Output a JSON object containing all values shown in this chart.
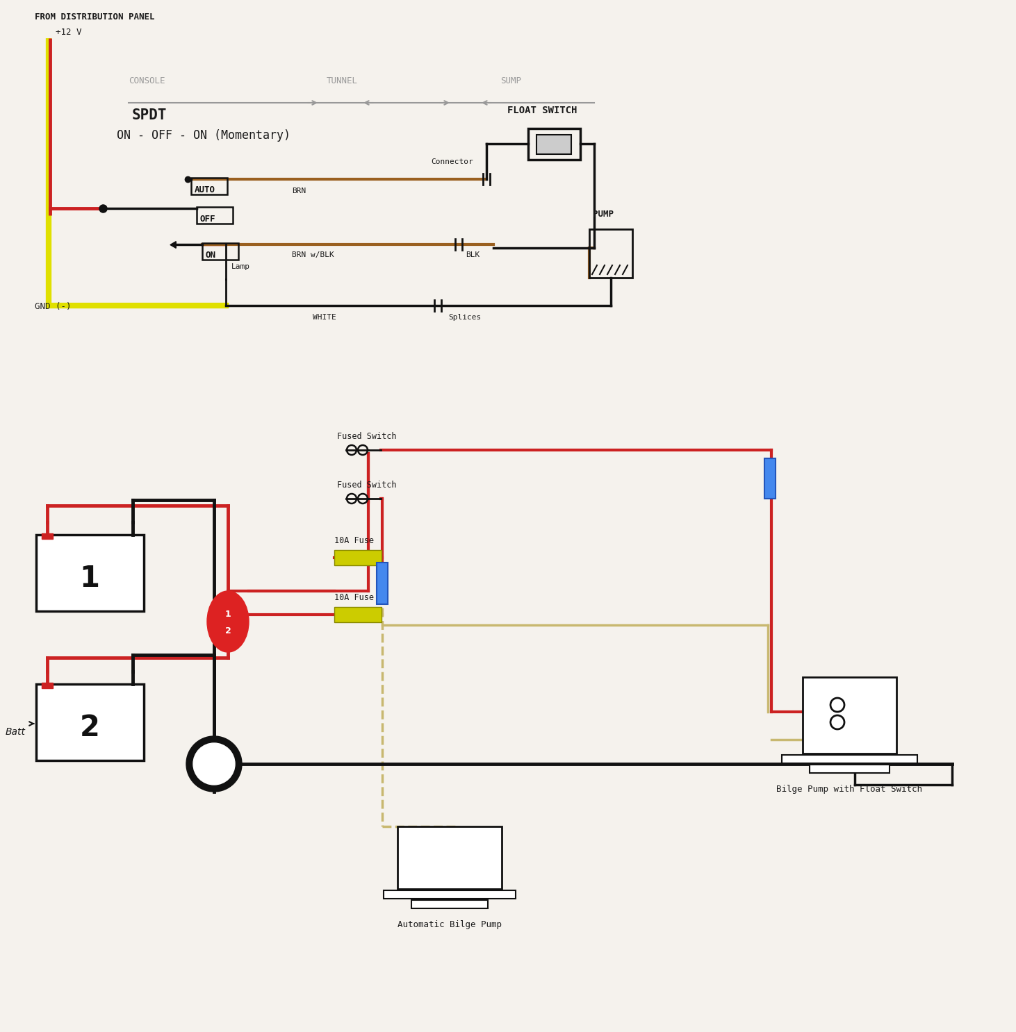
{
  "bg_color": "#f5f2ed",
  "wire_red": "#cc2222",
  "wire_yellow": "#e0e000",
  "wire_brown": "#9a6020",
  "wire_brown_blk": "#7a5030",
  "wire_black": "#111111",
  "wire_gray": "#999999",
  "wire_blue": "#4488ee",
  "wire_tan": "#c8b870",
  "dark": "#1a1a1a",
  "top": {
    "from_panel": "FROM DISTRIBUTION PANEL",
    "v12": "+12 V",
    "console": "CONSOLE",
    "tunnel": "TUNNEL",
    "sump": "SUMP",
    "spdt": "SPDT",
    "on_off_on": "ON - OFF - ON (Momentary)",
    "auto": "AUTO",
    "off": "OFF",
    "on_lbl": "ON",
    "lamp": "Lamp",
    "brn": "BRN",
    "brn_blk": "BRN w/BLK",
    "blk": "BLK",
    "white": "WHITE",
    "splices": "Splices",
    "connector": "Connector",
    "float_switch": "FLOAT SWITCH",
    "pump": "PUMP",
    "gnd": "GND (-)"
  },
  "bottom": {
    "fused1": "Fused Switch",
    "fused2": "Fused Switch",
    "fuse1": "10A Fuse",
    "fuse2": "10A Fuse",
    "auto_bilge": "Automatic Bilge Pump",
    "bilge_float": "Bilge Pump with Float Switch",
    "batt": "Batt"
  }
}
